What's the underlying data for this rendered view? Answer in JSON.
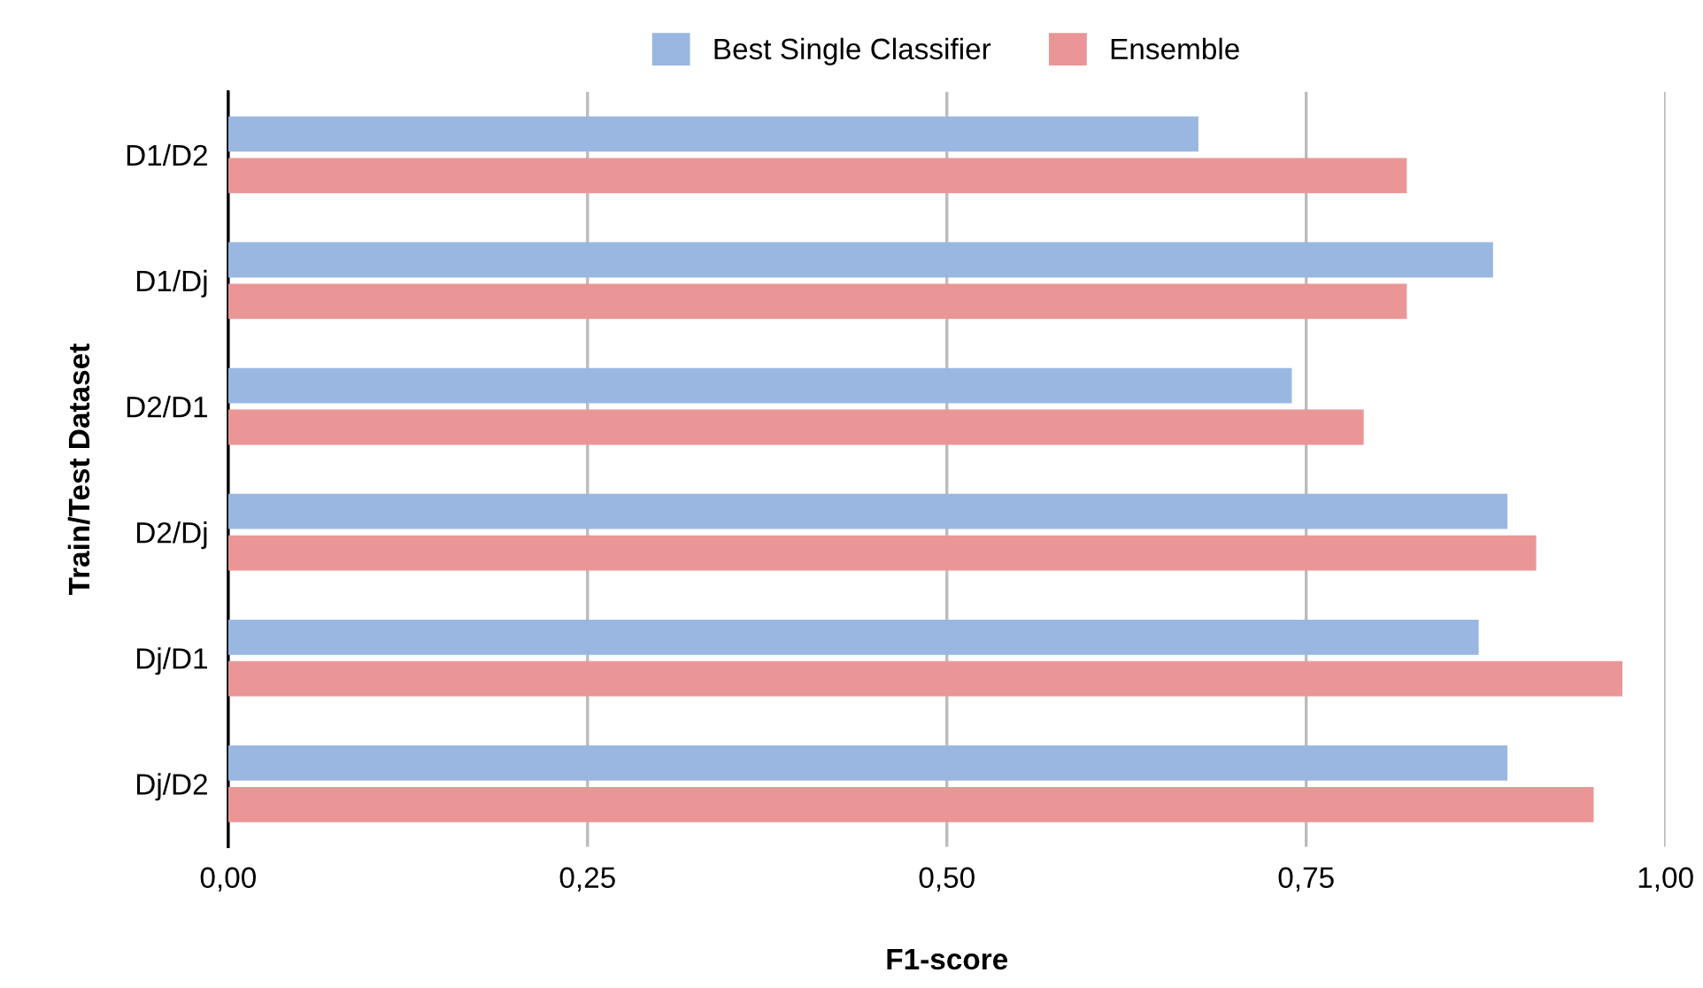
{
  "chart_data": {
    "type": "bar",
    "orientation": "horizontal",
    "xlabel": "F1-score",
    "ylabel": "Train/Test Dataset",
    "categories": [
      "D1/D2",
      "D1/Dj",
      "D2/D1",
      "D2/Dj",
      "Dj/D1",
      "Dj/D2"
    ],
    "series": [
      {
        "name": "Best Single Classifier",
        "color": "#9ab7e2",
        "values": [
          0.675,
          0.88,
          0.74,
          0.89,
          0.87,
          0.89
        ]
      },
      {
        "name": "Ensemble",
        "color": "#ea9696",
        "values": [
          0.82,
          0.82,
          0.79,
          0.91,
          0.97,
          0.95
        ]
      }
    ],
    "xlim": [
      0,
      1
    ],
    "xticks": [
      {
        "value": 0,
        "label": "0,00"
      },
      {
        "value": 0.25,
        "label": "0,25"
      },
      {
        "value": 0.5,
        "label": "0,50"
      },
      {
        "value": 0.75,
        "label": "0,75"
      },
      {
        "value": 1,
        "label": "1,00"
      }
    ],
    "grid": "x",
    "legend": "top"
  }
}
